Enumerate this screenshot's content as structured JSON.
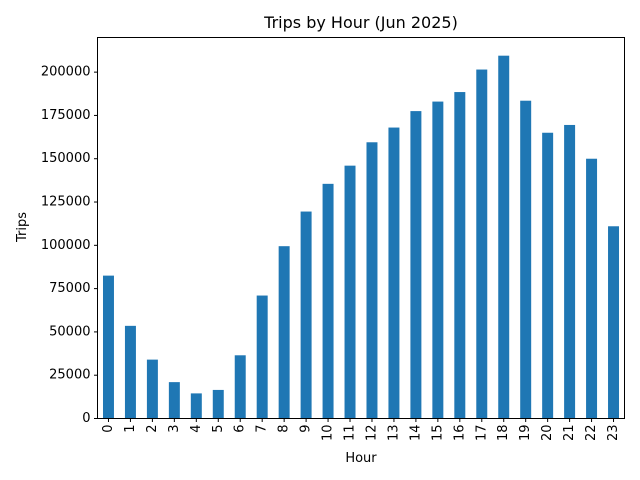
{
  "chart_data": {
    "type": "bar",
    "title": "Trips by Hour (Jun 2025)",
    "xlabel": "Hour",
    "ylabel": "Trips",
    "categories": [
      "0",
      "1",
      "2",
      "3",
      "4",
      "5",
      "6",
      "7",
      "8",
      "9",
      "10",
      "11",
      "12",
      "13",
      "14",
      "15",
      "16",
      "17",
      "18",
      "19",
      "20",
      "21",
      "22",
      "23"
    ],
    "values": [
      82500,
      53500,
      34000,
      21000,
      14500,
      16500,
      36500,
      71000,
      99500,
      119500,
      135500,
      146000,
      159500,
      168000,
      177500,
      183000,
      188500,
      201500,
      209500,
      183500,
      165000,
      169500,
      150000,
      111000
    ],
    "ylim": [
      0,
      220000
    ],
    "yticks": [
      0,
      25000,
      50000,
      75000,
      100000,
      125000,
      150000,
      175000,
      200000
    ],
    "ytick_labels": [
      "0",
      "25000",
      "50000",
      "75000",
      "100000",
      "125000",
      "150000",
      "175000",
      "200000"
    ],
    "bar_color": "#1f77b4",
    "grid": false,
    "legend": "none"
  }
}
